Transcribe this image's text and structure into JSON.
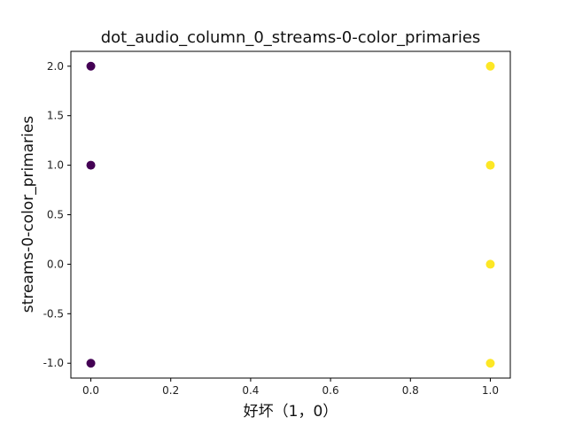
{
  "chart_data": {
    "type": "scatter",
    "title": "dot_audio_column_0_streams-0-color_primaries",
    "xlabel": "好坏（1，0）",
    "ylabel": "streams-0-color_primaries",
    "xlim": [
      -0.05,
      1.05
    ],
    "ylim": [
      -1.15,
      2.15
    ],
    "x_ticks": [
      0.0,
      0.2,
      0.4,
      0.6,
      0.8,
      1.0
    ],
    "x_tick_labels": [
      "0.0",
      "0.2",
      "0.4",
      "0.6",
      "0.8",
      "1.0"
    ],
    "y_ticks": [
      -1.0,
      -0.5,
      0.0,
      0.5,
      1.0,
      1.5,
      2.0
    ],
    "y_tick_labels": [
      "-1.0",
      "-0.5",
      "0.0",
      "0.5",
      "1.0",
      "1.5",
      "2.0"
    ],
    "grid": false,
    "colormap": "viridis",
    "color_low": "#440154",
    "color_high": "#fde725",
    "points": [
      {
        "x": 0,
        "y": 2.0,
        "c": 0
      },
      {
        "x": 0,
        "y": 1.0,
        "c": 0
      },
      {
        "x": 0,
        "y": -1.0,
        "c": 0
      },
      {
        "x": 1,
        "y": 2.0,
        "c": 1
      },
      {
        "x": 1,
        "y": 1.0,
        "c": 1
      },
      {
        "x": 1,
        "y": 0.0,
        "c": 1
      },
      {
        "x": 1,
        "y": -1.0,
        "c": 1
      }
    ]
  }
}
